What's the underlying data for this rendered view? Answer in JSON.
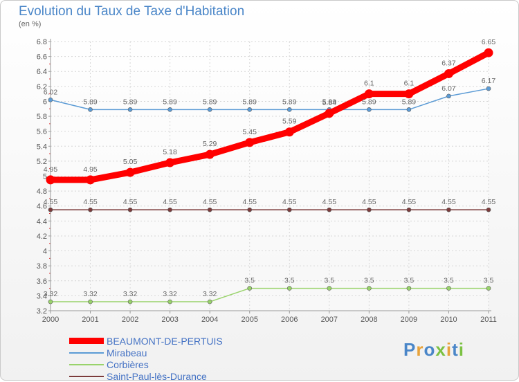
{
  "chart_data": {
    "type": "line",
    "title": "Evolution du Taux de Taxe d'Habitation",
    "subtitle": "(en %)",
    "xlabel": "",
    "ylabel": "(en %)",
    "ylim": [
      3.2,
      6.8
    ],
    "y_ticks": [
      "3.2",
      "3.4",
      "3.6",
      "3.8",
      "4",
      "4.2",
      "4.4",
      "4.6",
      "4.8",
      "5",
      "5.2",
      "5.4",
      "5.6",
      "5.8",
      "6",
      "6.2",
      "6.4",
      "6.6",
      "6.8"
    ],
    "categories": [
      "2000",
      "2001",
      "2002",
      "2003",
      "2004",
      "2005",
      "2006",
      "2007",
      "2008",
      "2009",
      "2010",
      "2011"
    ],
    "grid": true,
    "series": [
      {
        "name": "BEAUMONT-DE-PERTUIS",
        "color": "#ff0000",
        "values": [
          4.95,
          4.95,
          5.05,
          5.18,
          5.29,
          5.45,
          5.59,
          5.84,
          6.1,
          6.1,
          6.37,
          6.65
        ],
        "labels": [
          "4.95",
          "4.95",
          "5.05",
          "5.18",
          "5.29",
          "5.45",
          "5.59",
          "5.84",
          "6.1",
          "6.1",
          "6.37",
          "6.65"
        ]
      },
      {
        "name": "Mirabeau",
        "color": "#5b9bd5",
        "values": [
          6.02,
          5.89,
          5.89,
          5.89,
          5.89,
          5.89,
          5.89,
          5.89,
          5.89,
          5.89,
          6.07,
          6.17
        ],
        "labels": [
          "6.02",
          "5.89",
          "5.89",
          "5.89",
          "5.89",
          "5.89",
          "5.89",
          "5.89",
          "5.89",
          "5.89",
          "6.07",
          "6.17"
        ]
      },
      {
        "name": "Corbières",
        "color": "#99d36b",
        "values": [
          3.32,
          3.32,
          3.32,
          3.32,
          3.32,
          3.5,
          3.5,
          3.5,
          3.5,
          3.5,
          3.5,
          3.5
        ],
        "labels": [
          "3.32",
          "3.32",
          "3.32",
          "3.32",
          "3.32",
          "3.5",
          "3.5",
          "3.5",
          "3.5",
          "3.5",
          "3.5",
          "3.5"
        ]
      },
      {
        "name": "Saint-Paul-lès-Durance",
        "color": "#7b3b3b",
        "values": [
          4.55,
          4.55,
          4.55,
          4.55,
          4.55,
          4.55,
          4.55,
          4.55,
          4.55,
          4.55,
          4.55,
          4.55
        ],
        "labels": [
          "4.55",
          "4.55",
          "4.55",
          "4.55",
          "4.55",
          "4.55",
          "4.55",
          "4.55",
          "4.55",
          "4.55",
          "4.55",
          "4.55"
        ]
      }
    ]
  },
  "logo": {
    "letters": [
      "P",
      "r",
      "o",
      "x",
      "i",
      "t",
      "i"
    ],
    "colors": [
      "#4a86c8",
      "#e8a33b",
      "#4a86c8",
      "#7bc142",
      "#e8a33b",
      "#4a86c8",
      "#7bc142"
    ]
  }
}
